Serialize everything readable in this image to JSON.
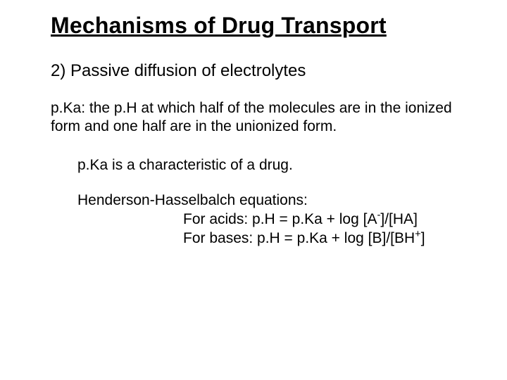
{
  "colors": {
    "background": "#ffffff",
    "text": "#000000"
  },
  "typography": {
    "title_fontsize": 32,
    "subtitle_fontsize": 24,
    "body_fontsize": 21,
    "title_weight": "bold",
    "title_underline": true
  },
  "title": "Mechanisms of Drug Transport",
  "subtitle": "2) Passive diffusion of electrolytes",
  "definition": "p.Ka:  the p.H at which half of the molecules are in the ionized form and one half are in the unionized form.",
  "characteristic": "p.Ka is a characteristic of a drug.",
  "hh_heading": "Henderson-Hasselbalch equations:",
  "hh_acids_html": "For acids: p.H = p.Ka + log [A<sup>-</sup>]/[HA]",
  "hh_bases_html": "For bases: p.H = p.Ka + log [B]/[BH<sup>+</sup>]"
}
